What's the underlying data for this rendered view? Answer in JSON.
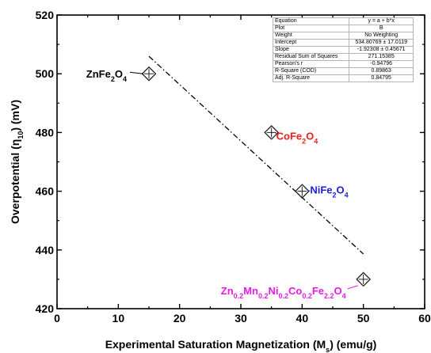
{
  "chart_data": {
    "type": "scatter",
    "xlabel": "Experimental Saturation Magnetization (M_s) (emu/g)",
    "ylabel": "Overpotential (η_10) (mV)",
    "xlim": [
      0,
      60
    ],
    "ylim": [
      420,
      520
    ],
    "x_ticks": [
      0,
      10,
      20,
      30,
      40,
      50,
      60
    ],
    "y_ticks": [
      420,
      440,
      460,
      480,
      500,
      520
    ],
    "grid": false,
    "points": [
      {
        "label": "ZnFe2O4",
        "x": 15,
        "y": 500,
        "color": "#000000"
      },
      {
        "label": "CoFe2O4",
        "x": 35,
        "y": 480,
        "color": "#e8211a"
      },
      {
        "label": "NiFe2O4",
        "x": 40,
        "y": 460,
        "color": "#1f1fd6"
      },
      {
        "label": "Zn0.2Mn0.2Ni0.2Co0.2Fe2.2O4",
        "x": 50,
        "y": 430,
        "color": "#e619e6"
      }
    ],
    "fit_line": {
      "x": [
        15,
        50
      ],
      "y": [
        505.95,
        438.63
      ],
      "style": "dash-dot"
    },
    "fit_stats": [
      {
        "name": "Equation",
        "value": "y = a + b*x"
      },
      {
        "name": "Plot",
        "value": "B"
      },
      {
        "name": "Weight",
        "value": "No Weighting"
      },
      {
        "name": "Intercept",
        "value": "534.80769 ± 17.0119"
      },
      {
        "name": "Slope",
        "value": "-1.92308 ± 0.45671"
      },
      {
        "name": "Residual Sum of Squares",
        "value": "271.15385"
      },
      {
        "name": "Pearson's r",
        "value": "-0.94796"
      },
      {
        "name": "R-Square (COD)",
        "value": "0.89863"
      },
      {
        "name": "Adj. R-Square",
        "value": "0.84795"
      }
    ]
  }
}
